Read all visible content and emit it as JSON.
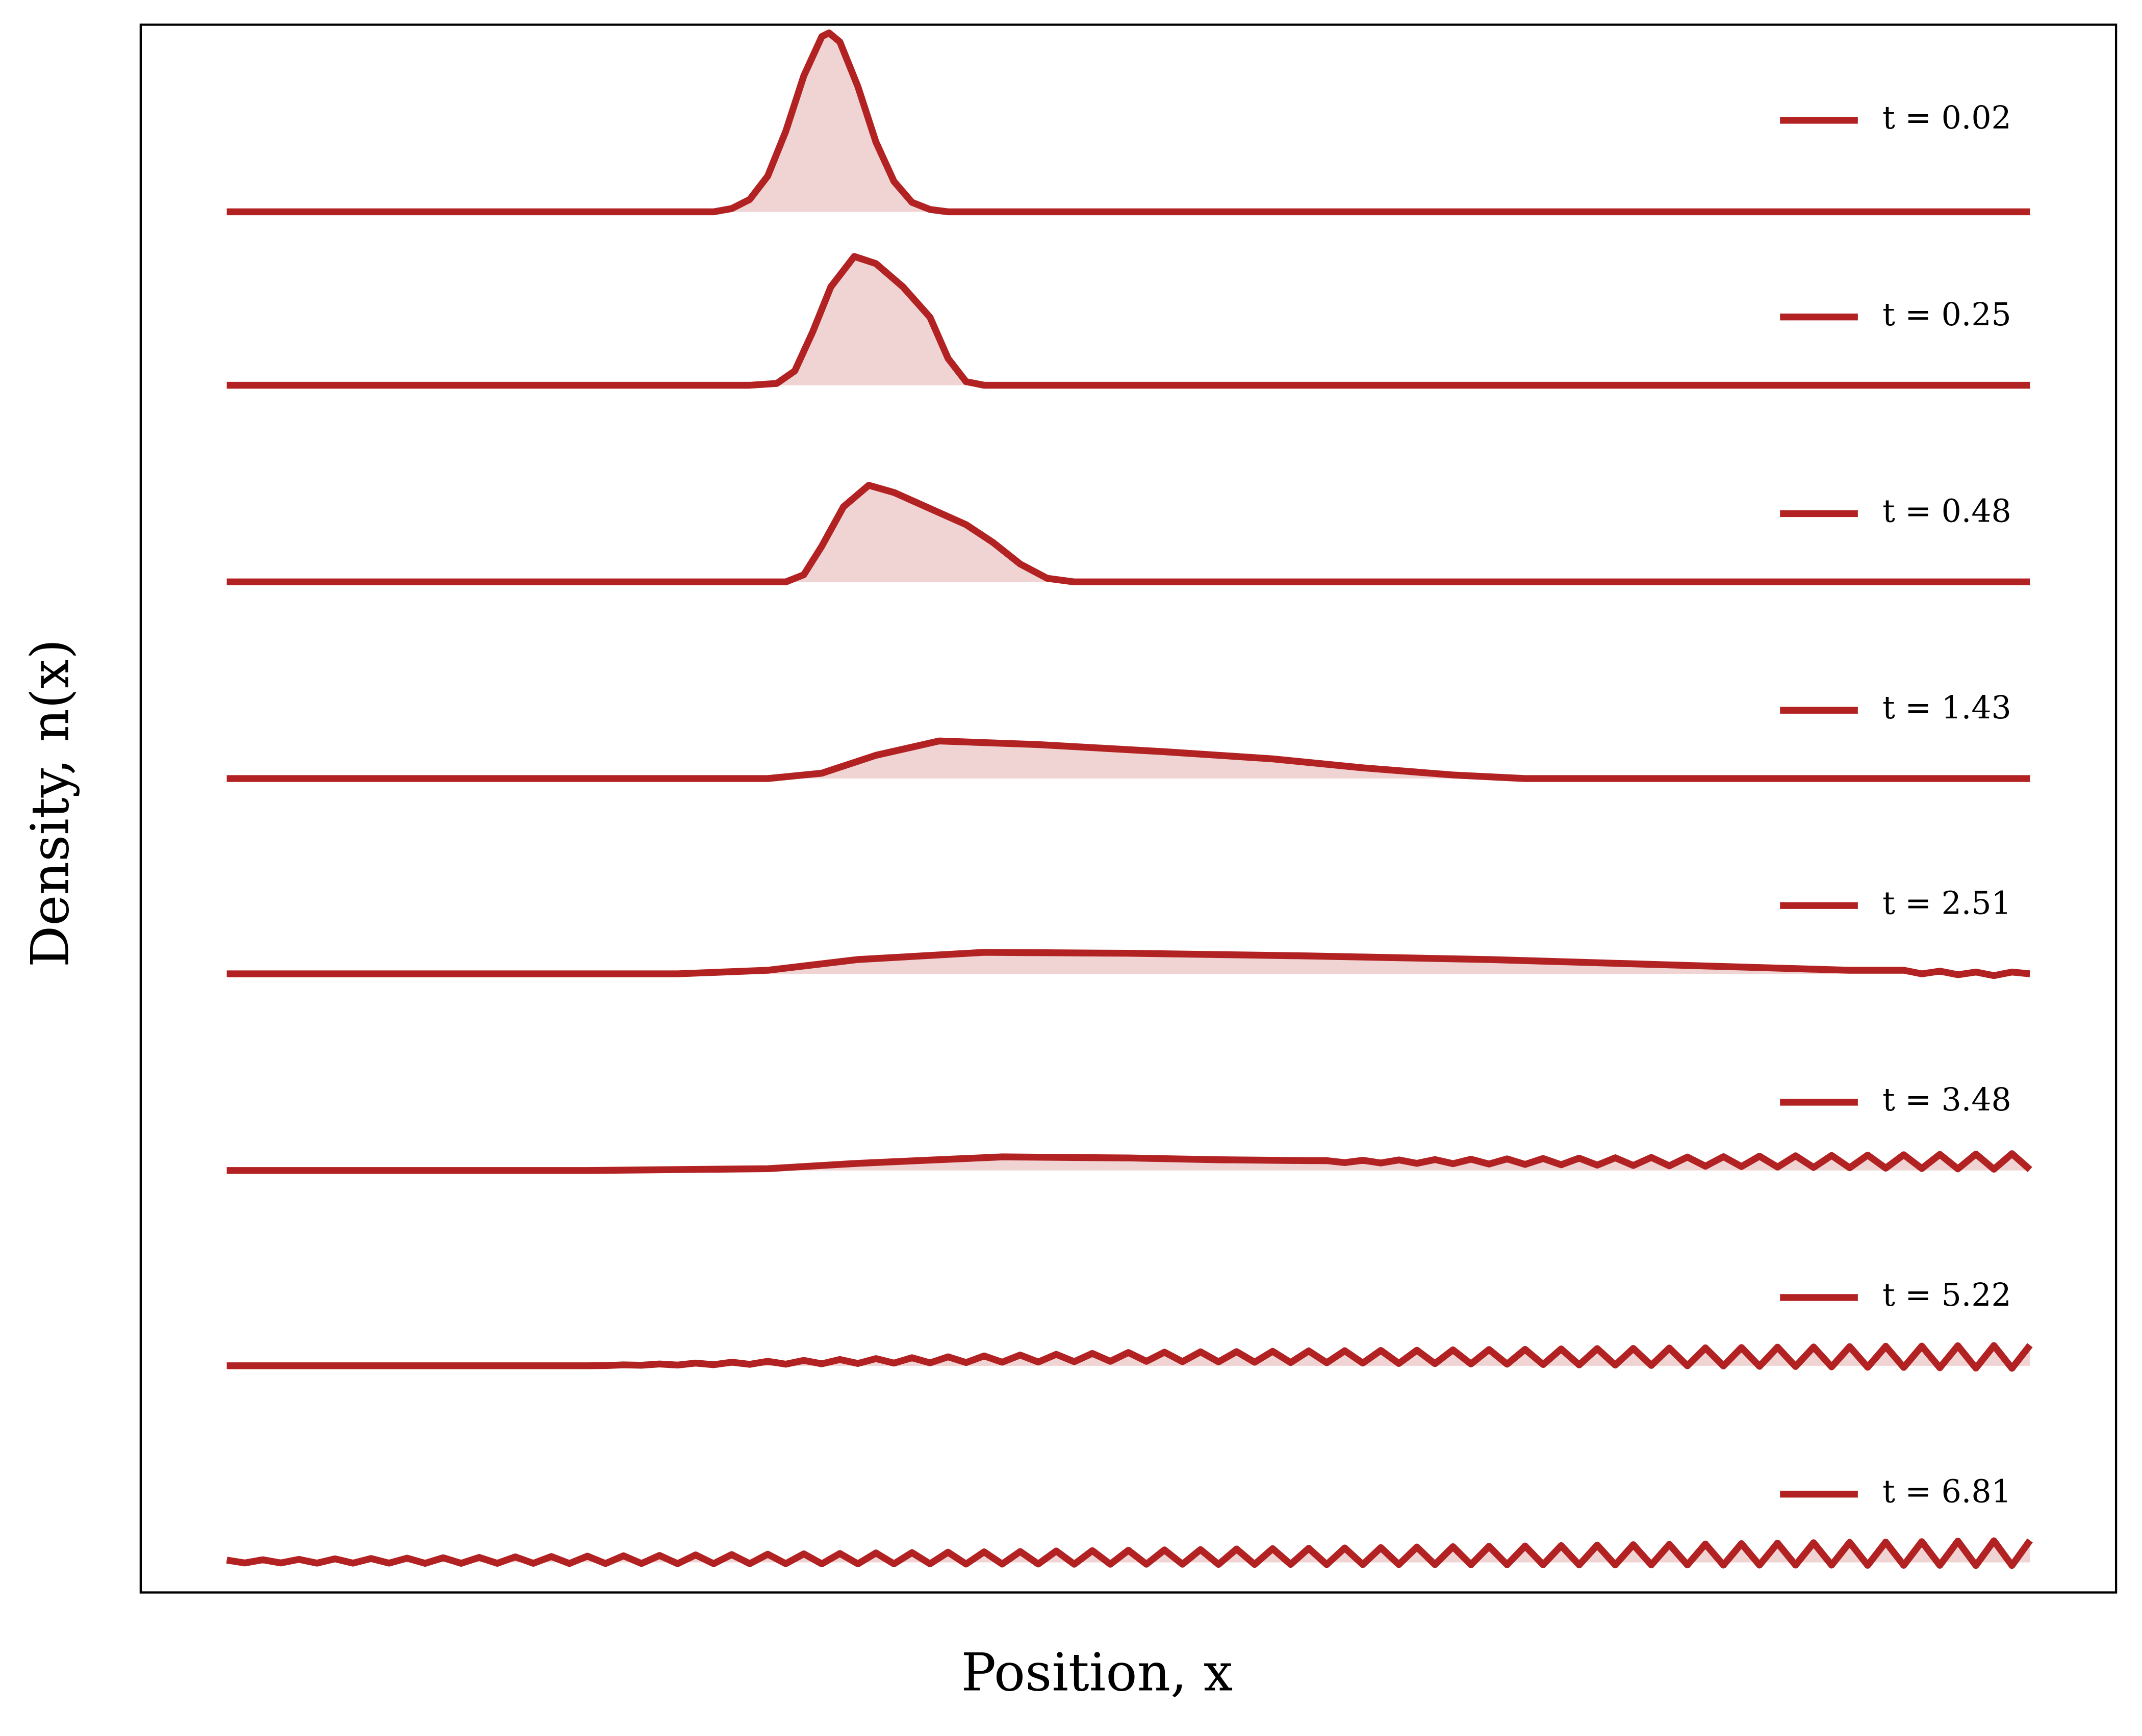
{
  "chart_data": {
    "type": "line",
    "xlabel": "Position, x",
    "ylabel": "Density, n(x)",
    "xlim": [
      0,
      1
    ],
    "series": [
      {
        "name": "t = 0.02",
        "color": "#b22222",
        "x": [
          0,
          0.27,
          0.28,
          0.29,
          0.3,
          0.31,
          0.32,
          0.33,
          0.334,
          0.34,
          0.35,
          0.36,
          0.37,
          0.38,
          0.39,
          0.4,
          1
        ],
        "values": [
          0,
          0,
          0.018,
          0.069,
          0.2,
          0.45,
          0.76,
          0.98,
          1,
          0.95,
          0.7,
          0.39,
          0.17,
          0.053,
          0.013,
          0,
          0
        ]
      },
      {
        "name": "t = 0.25",
        "color": "#b22222",
        "x": [
          0,
          0.29,
          0.305,
          0.315,
          0.325,
          0.335,
          0.348,
          0.36,
          0.375,
          0.39,
          0.4,
          0.41,
          0.42,
          1
        ],
        "values": [
          0,
          0,
          0.01,
          0.08,
          0.3,
          0.55,
          0.72,
          0.68,
          0.55,
          0.38,
          0.15,
          0.02,
          0,
          0
        ]
      },
      {
        "name": "t = 0.48",
        "color": "#b22222",
        "x": [
          0,
          0.31,
          0.32,
          0.33,
          0.342,
          0.356,
          0.37,
          0.39,
          0.41,
          0.425,
          0.44,
          0.455,
          0.47,
          1
        ],
        "values": [
          0,
          0,
          0.04,
          0.2,
          0.42,
          0.54,
          0.5,
          0.41,
          0.32,
          0.22,
          0.1,
          0.02,
          0,
          0
        ]
      },
      {
        "name": "t = 1.43",
        "color": "#b22222",
        "x": [
          0,
          0.3,
          0.33,
          0.36,
          0.395,
          0.45,
          0.52,
          0.58,
          0.63,
          0.68,
          0.72,
          1
        ],
        "values": [
          0,
          0,
          0.03,
          0.13,
          0.21,
          0.19,
          0.15,
          0.11,
          0.06,
          0.02,
          0,
          0
        ]
      },
      {
        "name": "t = 2.51",
        "color": "#b22222",
        "x": [
          0,
          0.25,
          0.3,
          0.35,
          0.42,
          0.5,
          0.6,
          0.7,
          0.8,
          0.9,
          0.93,
          0.94,
          0.95,
          0.96,
          0.97,
          0.98,
          0.99,
          1
        ],
        "values": [
          0,
          0,
          0.02,
          0.08,
          0.12,
          0.115,
          0.1,
          0.08,
          0.05,
          0.02,
          0.02,
          0,
          0.015,
          -0.005,
          0.01,
          -0.01,
          0.01,
          0
        ]
      },
      {
        "name": "t = 3.48",
        "color": "#b22222",
        "x": [
          0,
          0.2,
          0.3,
          0.35,
          0.43,
          0.5,
          0.55,
          0.6,
          0.61,
          0.62,
          0.63,
          0.64,
          0.65,
          0.66,
          0.67,
          0.68,
          0.69,
          0.7,
          0.71,
          0.72,
          0.73,
          0.74,
          0.75,
          0.76,
          0.77,
          0.78,
          0.79,
          0.8,
          0.81,
          0.82,
          0.83,
          0.84,
          0.85,
          0.86,
          0.87,
          0.88,
          0.89,
          0.9,
          0.91,
          0.92,
          0.93,
          0.94,
          0.95,
          0.96,
          0.97,
          0.98,
          0.99,
          1
        ],
        "values": [
          0,
          0,
          0.01,
          0.04,
          0.076,
          0.07,
          0.06,
          0.055,
          0.055,
          0.044,
          0.057,
          0.042,
          0.059,
          0.04,
          0.061,
          0.038,
          0.063,
          0.036,
          0.065,
          0.034,
          0.067,
          0.032,
          0.069,
          0.03,
          0.071,
          0.028,
          0.073,
          0.026,
          0.075,
          0.024,
          0.077,
          0.022,
          0.08,
          0.019,
          0.082,
          0.017,
          0.084,
          0.015,
          0.086,
          0.013,
          0.088,
          0.011,
          0.09,
          0.009,
          0.092,
          0.007,
          0.094,
          0.005
        ]
      },
      {
        "name": "t = 5.22",
        "color": "#b22222",
        "x": [
          0,
          0.1,
          0.2,
          0.21,
          0.22,
          0.23,
          0.24,
          0.25,
          0.26,
          0.27,
          0.28,
          0.29,
          0.3,
          0.31,
          0.32,
          0.33,
          0.34,
          0.35,
          0.36,
          0.37,
          0.38,
          0.39,
          0.4,
          0.41,
          0.42,
          0.43,
          0.44,
          0.45,
          0.46,
          0.47,
          0.48,
          0.49,
          0.5,
          0.51,
          0.52,
          0.53,
          0.54,
          0.55,
          0.56,
          0.57,
          0.58,
          0.59,
          0.6,
          0.61,
          0.62,
          0.63,
          0.64,
          0.65,
          0.66,
          0.67,
          0.68,
          0.69,
          0.7,
          0.71,
          0.72,
          0.73,
          0.74,
          0.75,
          0.76,
          0.77,
          0.78,
          0.79,
          0.8,
          0.81,
          0.82,
          0.83,
          0.84,
          0.85,
          0.86,
          0.87,
          0.88,
          0.89,
          0.9,
          0.91,
          0.92,
          0.93,
          0.94,
          0.95,
          0.96,
          0.97,
          0.98,
          0.99,
          1
        ],
        "values": [
          0,
          0,
          0,
          0.001,
          0.005,
          0.003,
          0.01,
          0.004,
          0.015,
          0.006,
          0.02,
          0.008,
          0.025,
          0.009,
          0.03,
          0.011,
          0.035,
          0.013,
          0.04,
          0.015,
          0.045,
          0.016,
          0.05,
          0.018,
          0.055,
          0.02,
          0.06,
          0.021,
          0.064,
          0.023,
          0.069,
          0.025,
          0.074,
          0.025,
          0.076,
          0.023,
          0.078,
          0.022,
          0.079,
          0.02,
          0.081,
          0.018,
          0.083,
          0.017,
          0.084,
          0.015,
          0.086,
          0.013,
          0.087,
          0.012,
          0.089,
          0.01,
          0.091,
          0.009,
          0.092,
          0.007,
          0.094,
          0.005,
          0.096,
          0.004,
          0.097,
          0.002,
          0.099,
          0,
          0.1,
          -0.001,
          0.102,
          -0.003,
          0.104,
          -0.004,
          0.105,
          -0.006,
          0.107,
          -0.008,
          0.109,
          -0.009,
          0.11,
          -0.011,
          0.112,
          -0.013,
          0.113,
          -0.014,
          0.115
        ]
      },
      {
        "name": "t = 6.81",
        "color": "#b22222",
        "x": [
          0,
          0.01,
          0.02,
          0.03,
          0.04,
          0.05,
          0.06,
          0.07,
          0.08,
          0.09,
          0.1,
          0.11,
          0.12,
          0.13,
          0.14,
          0.15,
          0.16,
          0.17,
          0.18,
          0.19,
          0.2,
          0.21,
          0.22,
          0.23,
          0.24,
          0.25,
          0.26,
          0.27,
          0.28,
          0.29,
          0.3,
          0.31,
          0.32,
          0.33,
          0.34,
          0.35,
          0.36,
          0.37,
          0.38,
          0.39,
          0.4,
          0.41,
          0.42,
          0.43,
          0.44,
          0.45,
          0.46,
          0.47,
          0.48,
          0.49,
          0.5,
          0.51,
          0.52,
          0.53,
          0.54,
          0.55,
          0.56,
          0.57,
          0.58,
          0.59,
          0.6,
          0.61,
          0.62,
          0.63,
          0.64,
          0.65,
          0.66,
          0.67,
          0.68,
          0.69,
          0.7,
          0.71,
          0.72,
          0.73,
          0.74,
          0.75,
          0.76,
          0.77,
          0.78,
          0.79,
          0.8,
          0.81,
          0.82,
          0.83,
          0.84,
          0.85,
          0.86,
          0.87,
          0.88,
          0.89,
          0.9,
          0.91,
          0.92,
          0.93,
          0.94,
          0.95,
          0.96,
          0.97,
          0.98,
          0.99,
          1
        ],
        "values": [
          0.013,
          -0.003,
          0.015,
          -0.003,
          0.017,
          -0.004,
          0.02,
          -0.004,
          0.022,
          -0.004,
          0.024,
          -0.005,
          0.026,
          -0.005,
          0.028,
          -0.005,
          0.031,
          -0.005,
          0.033,
          -0.006,
          0.035,
          -0.006,
          0.037,
          -0.006,
          0.039,
          -0.007,
          0.042,
          -0.007,
          0.044,
          -0.007,
          0.046,
          -0.007,
          0.048,
          -0.008,
          0.05,
          -0.008,
          0.053,
          -0.008,
          0.055,
          -0.008,
          0.057,
          -0.009,
          0.059,
          -0.009,
          0.061,
          -0.009,
          0.064,
          -0.01,
          0.066,
          -0.01,
          0.068,
          -0.01,
          0.07,
          -0.01,
          0.072,
          -0.011,
          0.075,
          -0.011,
          0.077,
          -0.011,
          0.079,
          -0.012,
          0.081,
          -0.012,
          0.083,
          -0.012,
          0.086,
          -0.012,
          0.088,
          -0.013,
          0.09,
          -0.013,
          0.092,
          -0.013,
          0.094,
          -0.014,
          0.097,
          -0.014,
          0.099,
          -0.014,
          0.101,
          -0.014,
          0.103,
          -0.015,
          0.105,
          -0.015,
          0.108,
          -0.015,
          0.11,
          -0.015,
          0.112,
          -0.016,
          0.114,
          -0.016,
          0.116,
          -0.016,
          0.119,
          -0.017,
          0.121,
          -0.017,
          0.123
        ]
      }
    ]
  }
}
